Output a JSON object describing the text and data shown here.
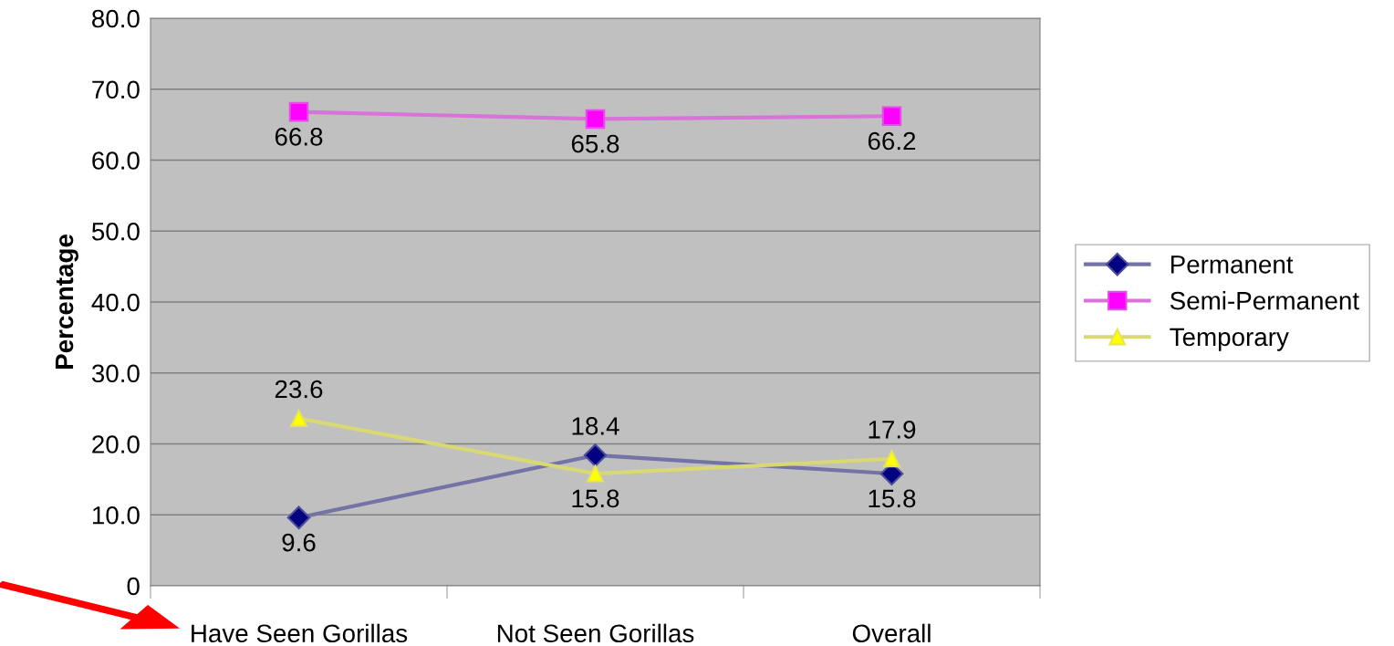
{
  "chart_data": {
    "type": "line",
    "ylabel": "Percentage",
    "categories": [
      "Have Seen Gorillas",
      "Not Seen Gorillas",
      "Overall"
    ],
    "series": [
      {
        "name": "Permanent",
        "color": "#000080",
        "marker": "diamond",
        "values": [
          9.6,
          18.4,
          15.8
        ]
      },
      {
        "name": "Semi-Permanent",
        "color": "#ff00ff",
        "marker": "square",
        "values": [
          66.8,
          65.8,
          66.2
        ]
      },
      {
        "name": "Temporary",
        "color": "#ffff00",
        "marker": "triangle",
        "values": [
          23.6,
          15.8,
          17.9
        ]
      }
    ],
    "ylim": [
      0,
      80
    ],
    "yticks": [
      {
        "value": 0,
        "label": "0"
      },
      {
        "value": 10,
        "label": "10.0"
      },
      {
        "value": 20,
        "label": "20.0"
      },
      {
        "value": 30,
        "label": "30.0"
      },
      {
        "value": 40,
        "label": "40.0"
      },
      {
        "value": 50,
        "label": "50.0"
      },
      {
        "value": 60,
        "label": "60.0"
      },
      {
        "value": 70,
        "label": "70.0"
      },
      {
        "value": 80,
        "label": "80.0"
      }
    ],
    "grid": "y",
    "legend": "right",
    "data_labels": true,
    "line_style": "solid"
  }
}
